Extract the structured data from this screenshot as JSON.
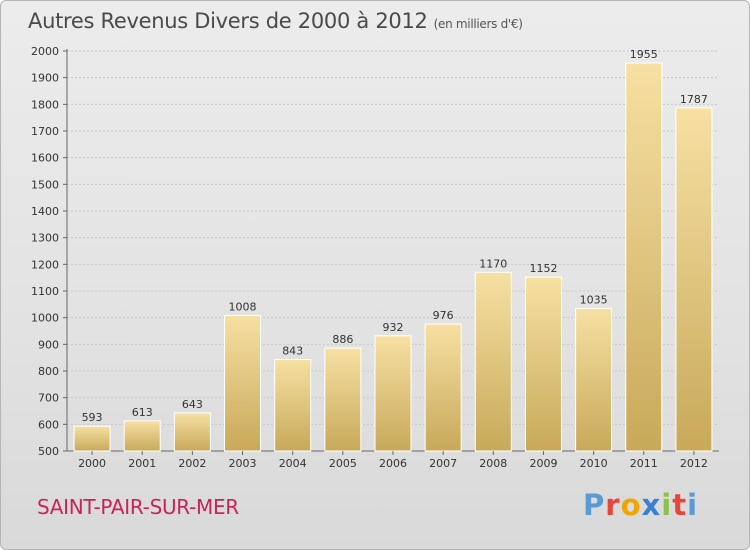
{
  "header": {
    "title": "Autres Revenus Divers de 2000 à 2012",
    "unit": "(en milliers d'€)"
  },
  "footer": {
    "commune": "SAINT-PAIR-SUR-MER",
    "logo_letters": [
      "P",
      "r",
      "o",
      "x",
      "i",
      "t",
      "i"
    ],
    "logo_colors": [
      "#5b9bd5",
      "#e8463a",
      "#f2a500",
      "#3a7fd0",
      "#8bc34a",
      "#e8463a",
      "#5b9bd5"
    ]
  },
  "colors": {
    "bar_light": "#f6e0a2",
    "bar_dark": "#c8a95a",
    "grid": "#c9c9c9",
    "commune": "#c8245a"
  },
  "chart_data": {
    "type": "bar",
    "categories": [
      "2000",
      "2001",
      "2002",
      "2003",
      "2004",
      "2005",
      "2006",
      "2007",
      "2008",
      "2009",
      "2010",
      "2011",
      "2012"
    ],
    "values": [
      593,
      613,
      643,
      1008,
      843,
      886,
      932,
      976,
      1170,
      1152,
      1035,
      1955,
      1787
    ],
    "ylim": [
      500,
      2000
    ],
    "yticks": [
      500,
      600,
      700,
      800,
      900,
      1000,
      1100,
      1200,
      1300,
      1400,
      1500,
      1600,
      1700,
      1800,
      1900,
      2000
    ],
    "grid": true
  }
}
